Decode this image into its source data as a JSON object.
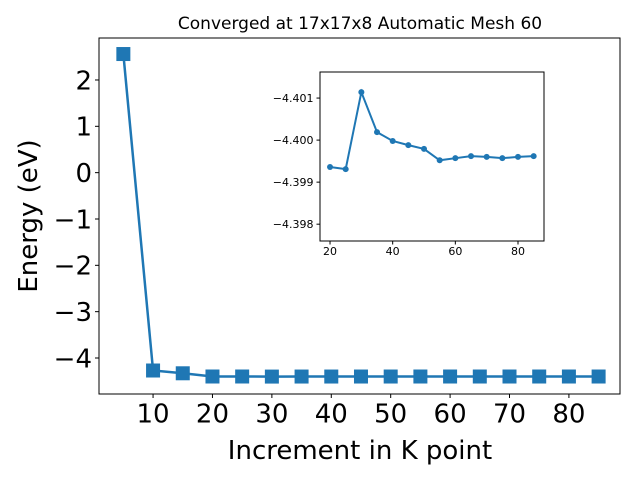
{
  "chart_data": [
    {
      "type": "line",
      "title": "Converged at 17x17x8 Automatic Mesh 60",
      "x_label": "Increment in K point",
      "y_label": "Energy (eV)",
      "x": [
        5,
        10,
        15,
        20,
        25,
        30,
        35,
        40,
        45,
        50,
        55,
        60,
        65,
        70,
        75,
        80,
        85
      ],
      "series": [
        {
          "color": "#1f77b4",
          "marker": "square",
          "values": [
            2.56,
            -4.27,
            -4.33,
            -4.39936,
            -4.39931,
            -4.40114,
            -4.40019,
            -4.39998,
            -4.39988,
            -4.39979,
            -4.39952,
            -4.39957,
            -4.39962,
            -4.3996,
            -4.39957,
            -4.3996,
            -4.39962
          ]
        }
      ],
      "xlim": [
        0.9,
        88.6
      ],
      "ylim": [
        -4.777,
        2.906
      ],
      "xticks": [
        10,
        20,
        30,
        40,
        50,
        60,
        70,
        80
      ],
      "yticks": [
        {
          "value": -4,
          "label": "−4"
        },
        {
          "value": -3,
          "label": "−3"
        },
        {
          "value": -2,
          "label": "−2"
        },
        {
          "value": -1,
          "label": "−1"
        },
        0,
        1,
        2
      ]
    },
    {
      "type": "line",
      "x": [
        20,
        25,
        30,
        35,
        40,
        45,
        50,
        55,
        60,
        65,
        70,
        75,
        80,
        85
      ],
      "series": [
        {
          "color": "#1f77b4",
          "marker": "circle",
          "values": [
            -4.39936,
            -4.39931,
            -4.40114,
            -4.40019,
            -4.39998,
            -4.39988,
            -4.39979,
            -4.39952,
            -4.39957,
            -4.39962,
            -4.3996,
            -4.39957,
            -4.3996,
            -4.39962
          ]
        }
      ],
      "xlim": [
        16.8,
        88.3
      ],
      "ylim": [
        -4.3976,
        -4.40162
      ],
      "xticks": [
        20,
        40,
        60,
        80
      ],
      "yticks": [
        {
          "value": -4.401,
          "label": "−4.401"
        },
        {
          "value": -4.4,
          "label": "−4.400"
        },
        {
          "value": -4.399,
          "label": "−4.399"
        },
        {
          "value": -4.398,
          "label": "−4.398"
        }
      ]
    }
  ]
}
